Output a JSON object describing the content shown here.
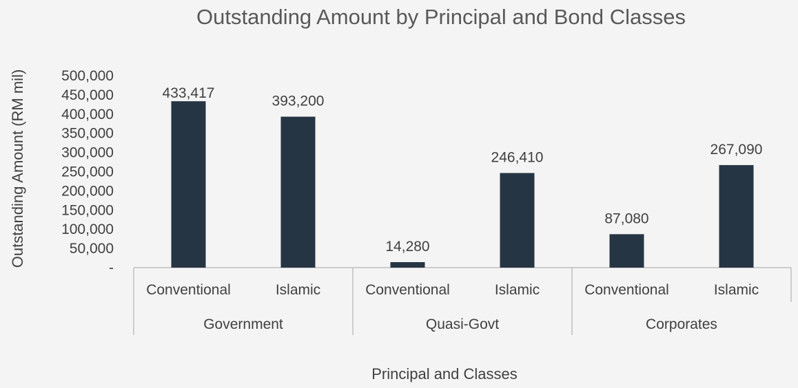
{
  "chart_data": {
    "type": "bar",
    "title": "Outstanding Amount by Principal and Bond Classes",
    "xlabel": "Principal and Classes",
    "ylabel": "Outstanding Amount (RM mil)",
    "ylim": [
      0,
      500000
    ],
    "yticks": [
      "-",
      "50,000",
      "100,000",
      "150,000",
      "200,000",
      "250,000",
      "300,000",
      "350,000",
      "400,000",
      "450,000",
      "500,000"
    ],
    "groups": [
      {
        "name": "Government",
        "categories": [
          "Conventional",
          "Islamic"
        ],
        "values": [
          433417,
          393200
        ],
        "labels": [
          "433,417",
          "393,200"
        ]
      },
      {
        "name": "Quasi-Govt",
        "categories": [
          "Conventional",
          "Islamic"
        ],
        "values": [
          14280,
          246410
        ],
        "labels": [
          "14,280",
          "246,410"
        ]
      },
      {
        "name": "Corporates",
        "categories": [
          "Conventional",
          "Islamic"
        ],
        "values": [
          87080,
          267090
        ],
        "labels": [
          "87,080",
          "267,090"
        ]
      }
    ],
    "bar_color": "#263544",
    "grid": false,
    "legend": "none"
  }
}
